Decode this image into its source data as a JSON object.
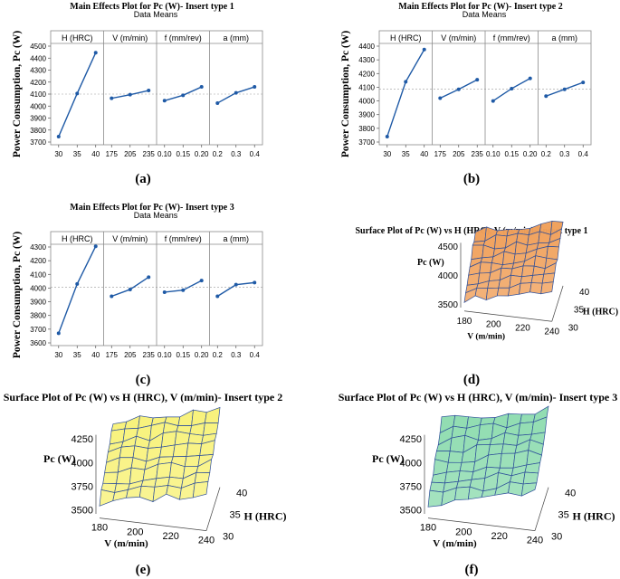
{
  "figures": [
    {
      "caption": "(a)"
    },
    {
      "caption": "(b)"
    },
    {
      "caption": "(c)"
    },
    {
      "caption": "(d)"
    },
    {
      "caption": "(e)"
    },
    {
      "caption": "(f)"
    }
  ],
  "chart_data": [
    {
      "type": "line",
      "title": "Main Effects Plot for Pc (W)- Insert type 1",
      "subtitle": "Data Means",
      "ylabel": "Power Consumption, Pc (W)",
      "ylim": [
        3700,
        4500
      ],
      "yticks": [
        3700,
        3800,
        3900,
        4000,
        4100,
        4200,
        4300,
        4400,
        4500
      ],
      "mean": 4100,
      "color": "#1f5aa6",
      "panels": [
        {
          "label": "H (HRC)",
          "categories": [
            "30",
            "35",
            "40"
          ],
          "values": [
            3745,
            4105,
            4445
          ]
        },
        {
          "label": "V (m/min)",
          "categories": [
            "175",
            "205",
            "235"
          ],
          "values": [
            4065,
            4095,
            4130
          ]
        },
        {
          "label": "f (mm/rev)",
          "categories": [
            "0.10",
            "0.15",
            "0.20"
          ],
          "values": [
            4045,
            4090,
            4160
          ]
        },
        {
          "label": "a (mm)",
          "categories": [
            "0.2",
            "0.3",
            "0.4"
          ],
          "values": [
            4025,
            4110,
            4160
          ]
        }
      ]
    },
    {
      "type": "line",
      "title": "Main Effects Plot for Pc (W)- Insert type 2",
      "subtitle": "Data Means",
      "ylabel": "Power Consumption, Pc (W)",
      "ylim": [
        3700,
        4400
      ],
      "yticks": [
        3700,
        3800,
        3900,
        4000,
        4100,
        4200,
        4300,
        4400
      ],
      "mean": 4085,
      "color": "#1f5aa6",
      "panels": [
        {
          "label": "H (HRC)",
          "categories": [
            "30",
            "35",
            "40"
          ],
          "values": [
            3740,
            4140,
            4375
          ]
        },
        {
          "label": "V (m/min)",
          "categories": [
            "175",
            "205",
            "235"
          ],
          "values": [
            4020,
            4085,
            4155
          ]
        },
        {
          "label": "f (mm/rev)",
          "categories": [
            "0.10",
            "0.15",
            "0.20"
          ],
          "values": [
            4000,
            4090,
            4165
          ]
        },
        {
          "label": "a (mm)",
          "categories": [
            "0.2",
            "0.3",
            "0.4"
          ],
          "values": [
            4035,
            4085,
            4135
          ]
        }
      ]
    },
    {
      "type": "line",
      "title": "Main Effects Plot for Pc (W)- Insert type 3",
      "subtitle": "Data Means",
      "ylabel": "Power Consumption, Pc (W)",
      "ylim": [
        3600,
        4300
      ],
      "yticks": [
        3600,
        3700,
        3800,
        3900,
        4000,
        4100,
        4200,
        4300
      ],
      "mean": 4005,
      "color": "#1f5aa6",
      "panels": [
        {
          "label": "H (HRC)",
          "categories": [
            "30",
            "35",
            "40"
          ],
          "values": [
            3670,
            4030,
            4305
          ]
        },
        {
          "label": "V (m/min)",
          "categories": [
            "175",
            "205",
            "235"
          ],
          "values": [
            3940,
            3990,
            4080
          ]
        },
        {
          "label": "f (mm/rev)",
          "categories": [
            "0.10",
            "0.15",
            "0.20"
          ],
          "values": [
            3970,
            3985,
            4055
          ]
        },
        {
          "label": "a (mm)",
          "categories": [
            "0.2",
            "0.3",
            "0.4"
          ],
          "values": [
            3940,
            4025,
            4040
          ]
        }
      ]
    },
    {
      "type": "surface",
      "title": "Surface Plot of Pc (W) vs H (HRC), V (m/min)- Insert type 1",
      "zlabel": "Pc (W)",
      "xlabel": "V (m/min)",
      "ylabel": "H (HRC)",
      "zticks": [
        "3500",
        "4000",
        "4500"
      ],
      "xticks": [
        "180",
        "200",
        "220",
        "240"
      ],
      "yticks": [
        "30",
        "35",
        "40"
      ],
      "fill": "#f0a05a",
      "stroke": "#2e4f9a"
    },
    {
      "type": "surface",
      "title": "Surface Plot of Pc (W) vs H (HRC), V (m/min)- Insert type 2",
      "zlabel": "Pc (W)",
      "xlabel": "V (m/min)",
      "ylabel": "H (HRC)",
      "zticks": [
        "3500",
        "3750",
        "4000",
        "4250"
      ],
      "xticks": [
        "180",
        "200",
        "220",
        "240"
      ],
      "yticks": [
        "30",
        "35",
        "40"
      ],
      "fill": "#f8f27a",
      "stroke": "#2e4f9a"
    },
    {
      "type": "surface",
      "title": "Surface Plot of Pc (W) vs H (HRC), V (m/min)- Insert type 3",
      "zlabel": "Pc (W)",
      "xlabel": "V (m/min)",
      "ylabel": "H (HRC)",
      "zticks": [
        "3500",
        "3750",
        "4000",
        "4250"
      ],
      "xticks": [
        "180",
        "200",
        "220",
        "240"
      ],
      "yticks": [
        "30",
        "35",
        "40"
      ],
      "fill": "#8fdcb0",
      "stroke": "#2e4f9a"
    }
  ]
}
